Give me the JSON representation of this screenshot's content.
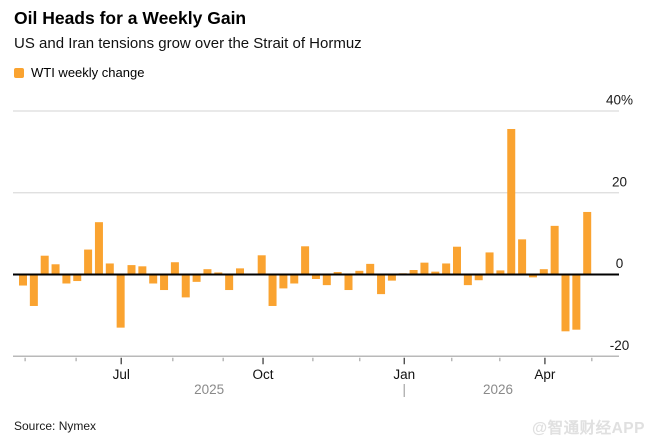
{
  "chart": {
    "title": "Oil Heads for a Weekly Gain",
    "subtitle": "US and Iran tensions grow over the Strait of Hormuz",
    "legend_label": "WTI weekly change",
    "source": "Source: Nymex",
    "watermark": "@智通财经APP",
    "accent_color": "#FAA330"
  },
  "chart_data": {
    "type": "bar",
    "title": "Oil Heads for a Weekly Gain",
    "subtitle": "US and Iran tensions grow over the Strait of Hormuz",
    "unit": "% weekly change",
    "legend": [
      {
        "label": "WTI weekly change",
        "color": "#FAA330"
      }
    ],
    "legend_position": "top-left",
    "grid": true,
    "bar_color": "#FAA330",
    "ylim": [
      -20,
      40
    ],
    "yticks": [
      {
        "value": 40,
        "label": "40%"
      },
      {
        "value": 20,
        "label": "20"
      },
      {
        "value": 0,
        "label": "0"
      },
      {
        "value": -20,
        "label": "-20"
      }
    ],
    "series": [
      {
        "name": "WTI weekly change",
        "values": [
          -2.7,
          -7.7,
          4.6,
          2.5,
          -2.2,
          -1.6,
          6.1,
          12.8,
          2.7,
          -13.0,
          2.3,
          2.0,
          -2.2,
          -3.8,
          3.0,
          -5.6,
          -1.8,
          1.3,
          0.5,
          -3.8,
          1.5,
          0.0,
          4.7,
          -7.7,
          -3.4,
          -2.2,
          6.9,
          -1.1,
          -2.6,
          0.6,
          -3.8,
          0.9,
          2.6,
          -4.8,
          -1.5,
          0.3,
          1.1,
          2.9,
          0.7,
          2.7,
          6.8,
          -2.6,
          -1.4,
          5.4,
          1.0,
          35.6,
          8.6,
          -0.7,
          1.3,
          11.9,
          -13.9,
          -13.5,
          15.3
        ]
      }
    ],
    "x_axis": {
      "month_ticks": [
        {
          "f": 0.019,
          "label": ""
        },
        {
          "f": 0.106,
          "label": ""
        },
        {
          "f": 0.183,
          "label": "Jul"
        },
        {
          "f": 0.271,
          "label": ""
        },
        {
          "f": 0.357,
          "label": ""
        },
        {
          "f": 0.425,
          "label": "Oct"
        },
        {
          "f": 0.51,
          "label": ""
        },
        {
          "f": 0.59,
          "label": ""
        },
        {
          "f": 0.666,
          "label": "Jan"
        },
        {
          "f": 0.747,
          "label": ""
        },
        {
          "f": 0.829,
          "label": ""
        },
        {
          "f": 0.906,
          "label": "Apr"
        },
        {
          "f": 0.986,
          "label": ""
        }
      ],
      "year_labels": [
        {
          "f": 0.333,
          "label": "2025"
        },
        {
          "f": 0.826,
          "label": "2026"
        }
      ],
      "year_divider_f": 0.666
    },
    "source": "Source: Nymex",
    "watermark": "@智通财经APP"
  }
}
